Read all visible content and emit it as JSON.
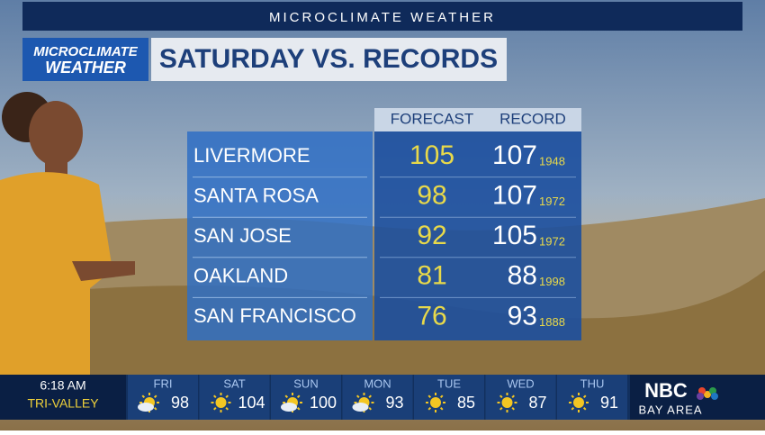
{
  "header": {
    "banner": "MICROCLIMATE WEATHER",
    "logo": [
      "MICROCLIMATE",
      "WEATHER"
    ],
    "title": "SATURDAY VS. RECORDS"
  },
  "table": {
    "columns": [
      "FORECAST",
      "RECORD"
    ],
    "rows": [
      {
        "city": "LIVERMORE",
        "forecast": "105",
        "record": "107",
        "year": "1948"
      },
      {
        "city": "SANTA ROSA",
        "forecast": "98",
        "record": "107",
        "year": "1972"
      },
      {
        "city": "SAN JOSE",
        "forecast": "92",
        "record": "105",
        "year": "1972"
      },
      {
        "city": "OAKLAND",
        "forecast": "81",
        "record": "88",
        "year": "1998"
      },
      {
        "city": "SAN FRANCISCO",
        "forecast": "76",
        "record": "93",
        "year": "1888"
      }
    ]
  },
  "ticker": {
    "time": "6:18 AM",
    "location": "TRI-VALLEY",
    "days": [
      {
        "day": "FRI",
        "temp": "98",
        "icon": "partly-cloudy"
      },
      {
        "day": "SAT",
        "temp": "104",
        "icon": "sun"
      },
      {
        "day": "SUN",
        "temp": "100",
        "icon": "partly-cloudy"
      },
      {
        "day": "MON",
        "temp": "93",
        "icon": "partly-cloudy"
      },
      {
        "day": "TUE",
        "temp": "85",
        "icon": "sun"
      },
      {
        "day": "WED",
        "temp": "87",
        "icon": "sun"
      },
      {
        "day": "THU",
        "temp": "91",
        "icon": "sun"
      }
    ],
    "network": "NBC",
    "station": "BAY AREA"
  }
}
